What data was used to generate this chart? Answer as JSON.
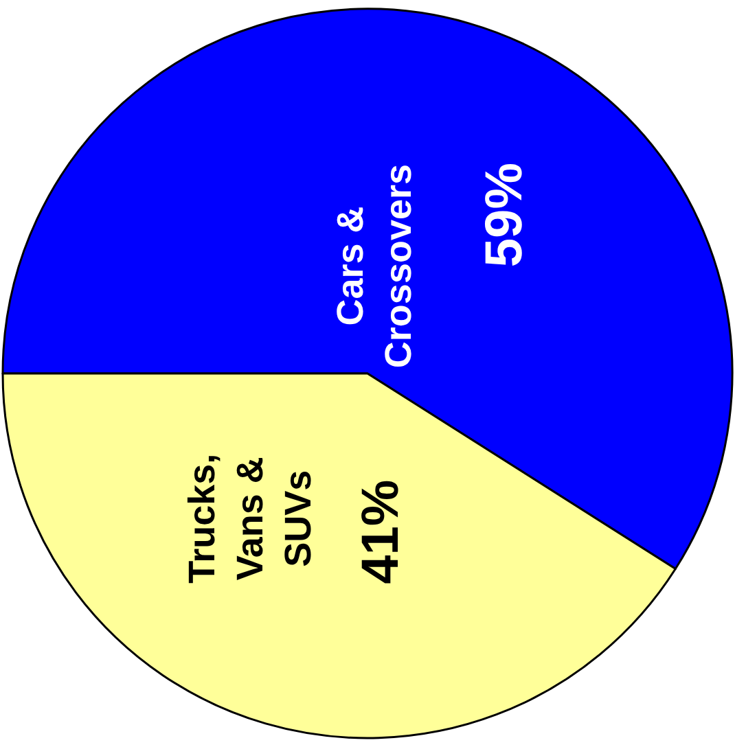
{
  "chart_data": {
    "type": "pie",
    "categories": [
      "Cars & Crossovers",
      "Trucks, Vans & SUVs"
    ],
    "values": [
      59,
      41
    ],
    "colors": [
      "#0000ff",
      "#ffff99"
    ],
    "value_labels": [
      "59%",
      "41%"
    ]
  }
}
